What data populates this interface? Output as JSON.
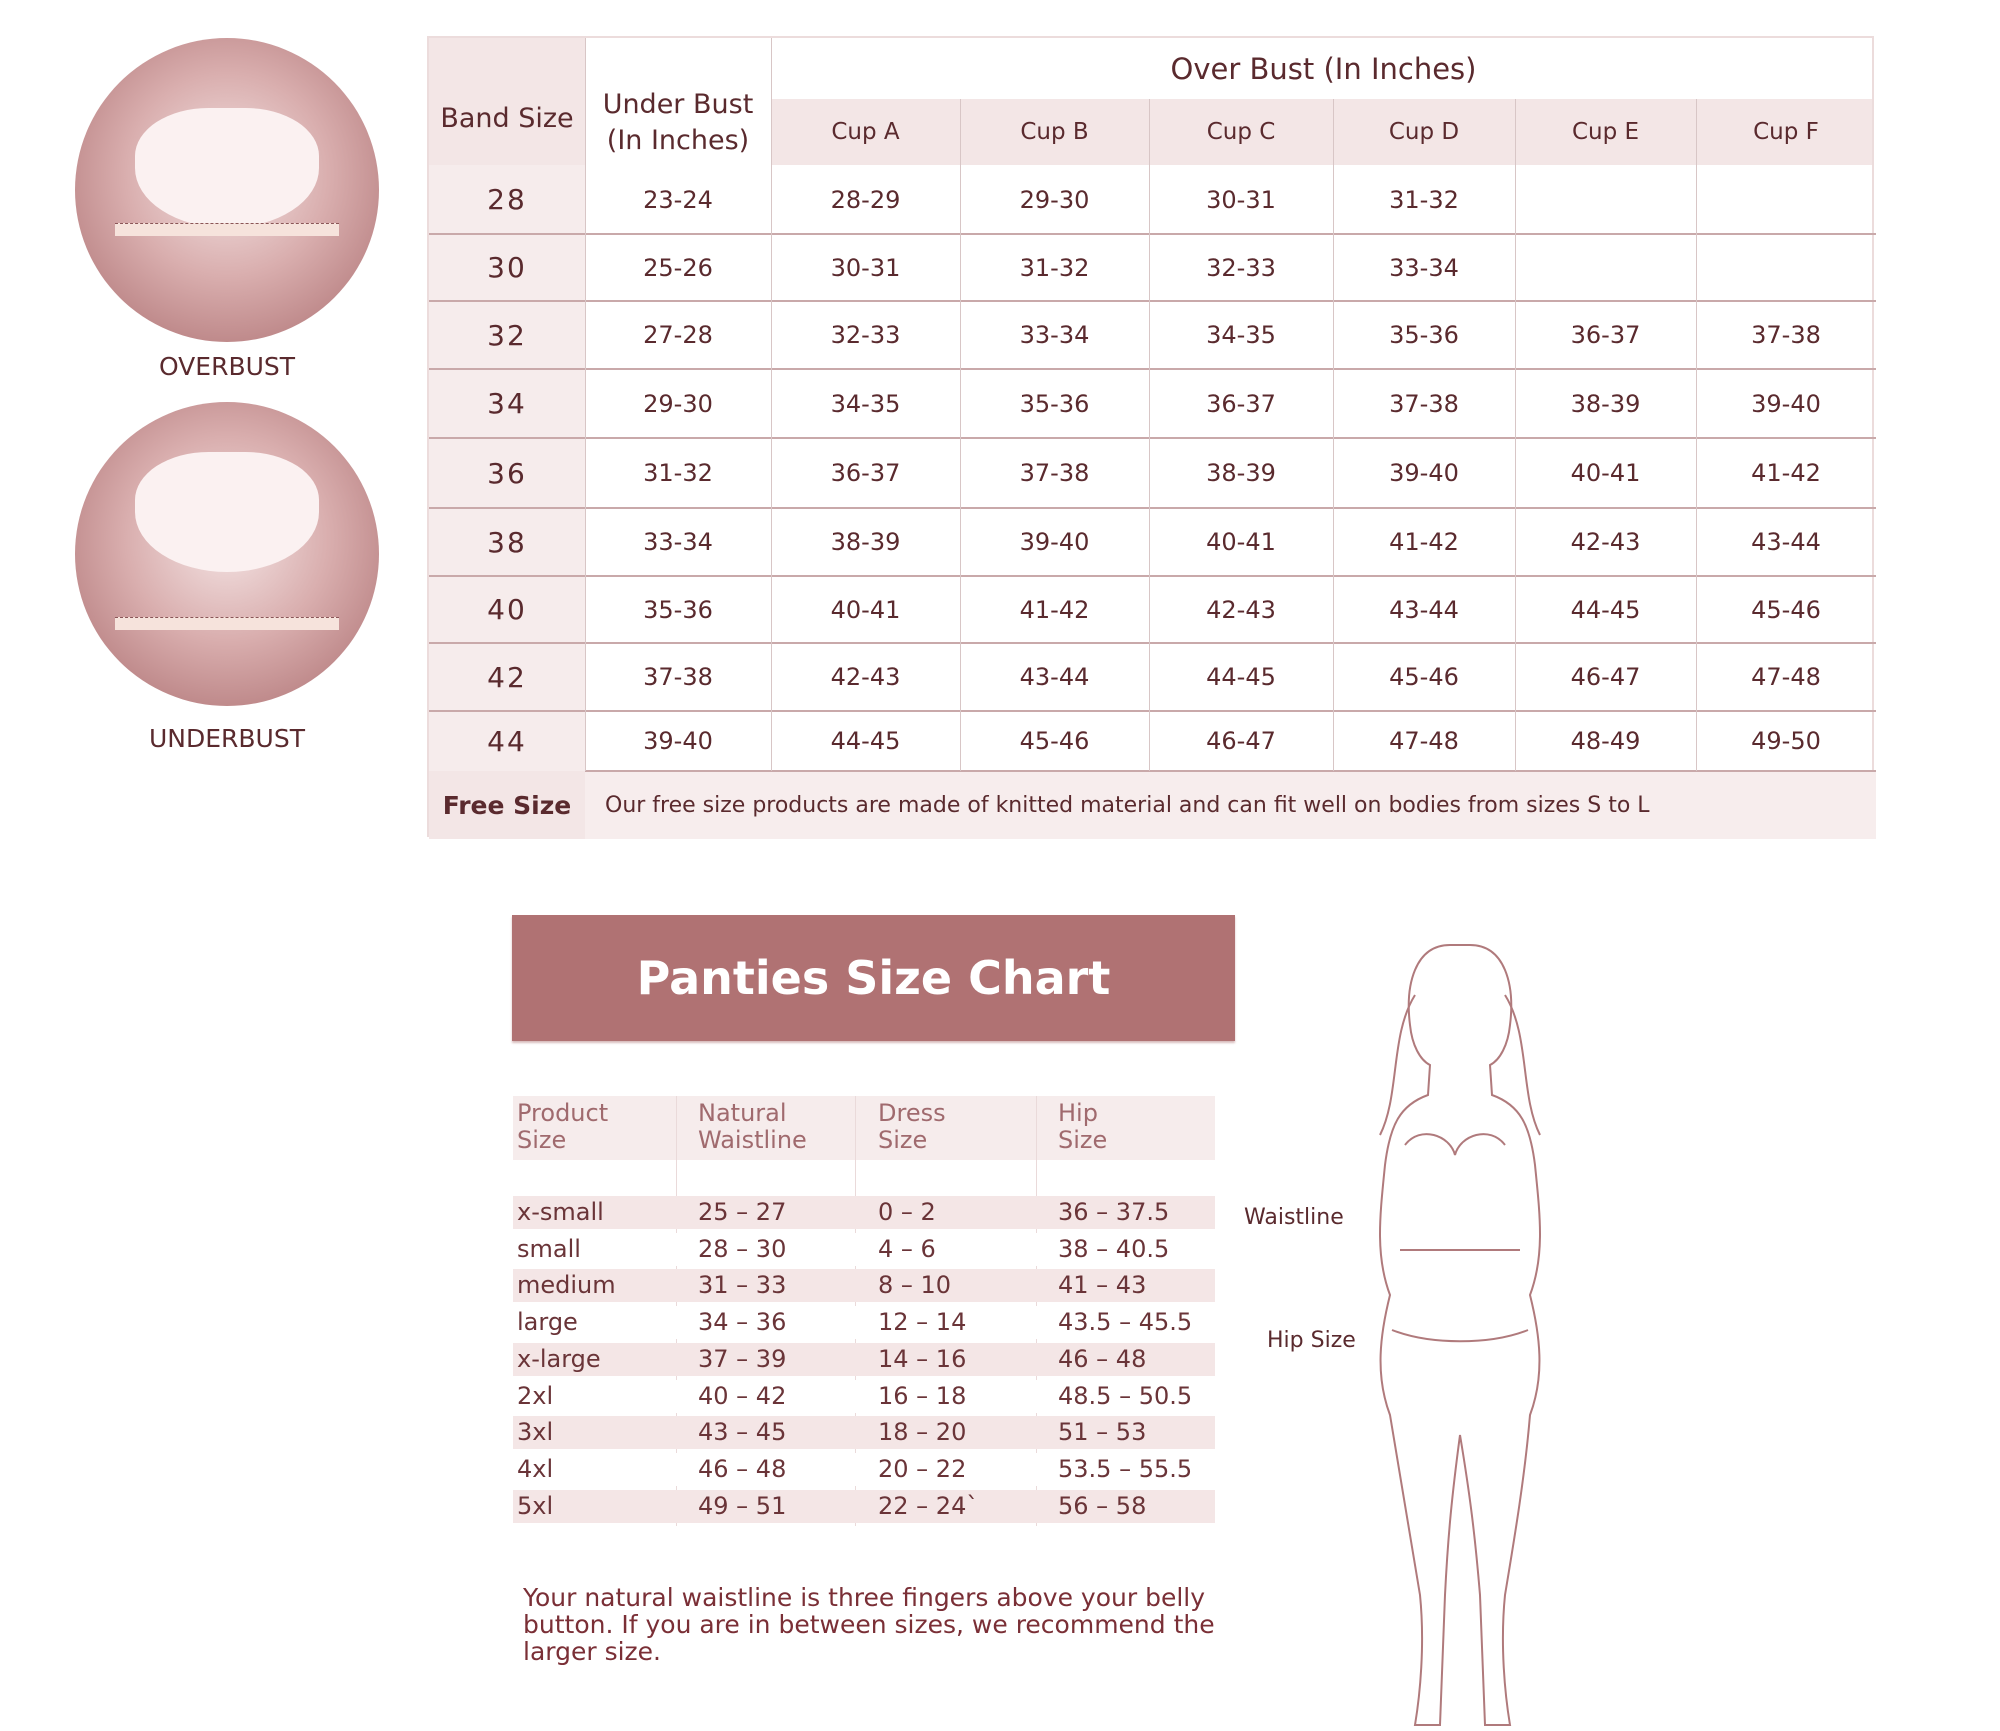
{
  "figures": {
    "overbust_label": "OVERBUST",
    "underbust_label": "UNDERBUST"
  },
  "bra_table": {
    "col_band": "Band Size",
    "col_under": "Under Bust (In Inches)",
    "group_header": "Over Bust (In Inches)",
    "cups": [
      "Cup A",
      "Cup B",
      "Cup C",
      "Cup D",
      "Cup E",
      "Cup F"
    ],
    "rows": [
      [
        "28",
        "23-24",
        "28-29",
        "29-30",
        "30-31",
        "31-32",
        "",
        ""
      ],
      [
        "30",
        "25-26",
        "30-31",
        "31-32",
        "32-33",
        "33-34",
        "",
        ""
      ],
      [
        "32",
        "27-28",
        "32-33",
        "33-34",
        "34-35",
        "35-36",
        "36-37",
        "37-38"
      ],
      [
        "34",
        "29-30",
        "34-35",
        "35-36",
        "36-37",
        "37-38",
        "38-39",
        "39-40"
      ],
      [
        "36",
        "31-32",
        "36-37",
        "37-38",
        "38-39",
        "39-40",
        "40-41",
        "41-42"
      ],
      [
        "38",
        "33-34",
        "38-39",
        "39-40",
        "40-41",
        "41-42",
        "42-43",
        "43-44"
      ],
      [
        "40",
        "35-36",
        "40-41",
        "41-42",
        "42-43",
        "43-44",
        "44-45",
        "45-46"
      ],
      [
        "42",
        "37-38",
        "42-43",
        "43-44",
        "44-45",
        "45-46",
        "46-47",
        "47-48"
      ],
      [
        "44",
        "39-40",
        "44-45",
        "45-46",
        "46-47",
        "47-48",
        "48-49",
        "49-50"
      ]
    ],
    "free_size_label": "Free Size",
    "free_size_text": "Our free size products are made of knitted material and can fit well on bodies from sizes S to L"
  },
  "panties": {
    "title": "Panties Size Chart",
    "headers": [
      [
        "Product",
        "Size"
      ],
      [
        "Natural",
        "Waistline"
      ],
      [
        "Dress",
        "Size"
      ],
      [
        "Hip",
        "Size"
      ]
    ],
    "rows": [
      [
        "x-small",
        "25 – 27",
        "0 – 2",
        "36 – 37.5"
      ],
      [
        "small",
        "28 – 30",
        "4 – 6",
        "38 – 40.5"
      ],
      [
        "medium",
        "31 – 33",
        "8 – 10",
        "41 – 43"
      ],
      [
        "large",
        "34 – 36",
        "12 – 14",
        "43.5 – 45.5"
      ],
      [
        "x-large",
        "37 – 39",
        "14 – 16",
        "46 – 48"
      ],
      [
        "2xl",
        "40 – 42",
        "16 – 18",
        "48.5 – 50.5"
      ],
      [
        "3xl",
        "43 – 45",
        "18 – 20",
        "51 – 53"
      ],
      [
        "4xl",
        "46 – 48",
        "20 – 22",
        "53.5 – 55.5"
      ],
      [
        "5xl",
        "49 – 51",
        "22 – 24`",
        "56 – 58"
      ]
    ],
    "note": "Your natural waistline is three fingers above your belly button. If you are in between sizes, we recommend the larger size.",
    "waistline_label": "Waistline",
    "hip_label": "Hip Size"
  },
  "colors": {
    "text": "#5a2a2e",
    "banner": "#b07273",
    "header_bg": "#f3e6e6"
  }
}
